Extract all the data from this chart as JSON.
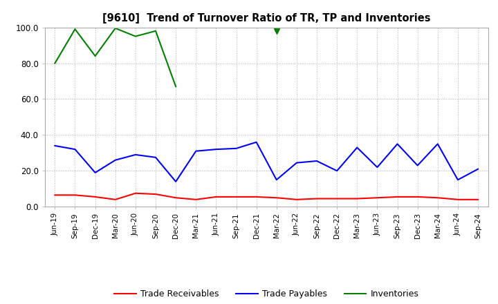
{
  "title": "[9610]  Trend of Turnover Ratio of TR, TP and Inventories",
  "xlabels": [
    "Jun-19",
    "Sep-19",
    "Dec-19",
    "Mar-20",
    "Jun-20",
    "Sep-20",
    "Dec-20",
    "Mar-21",
    "Jun-21",
    "Sep-21",
    "Dec-21",
    "Mar-22",
    "Jun-22",
    "Sep-22",
    "Dec-22",
    "Mar-23",
    "Jun-23",
    "Sep-23",
    "Dec-23",
    "Mar-24",
    "Jun-24",
    "Sep-24"
  ],
  "trade_receivables": [
    6.5,
    6.5,
    5.5,
    4.0,
    7.5,
    7.0,
    5.0,
    4.0,
    5.5,
    5.5,
    5.5,
    5.0,
    4.0,
    4.5,
    4.5,
    4.5,
    5.0,
    5.5,
    5.5,
    5.0,
    4.0,
    4.0
  ],
  "trade_payables": [
    34.0,
    32.0,
    19.0,
    26.0,
    29.0,
    27.5,
    14.0,
    31.0,
    32.0,
    32.5,
    36.0,
    15.0,
    24.5,
    25.5,
    20.0,
    33.0,
    22.0,
    35.0,
    23.0,
    35.0,
    15.0,
    21.0
  ],
  "inventories": [
    80.0,
    99.0,
    84.0,
    99.5,
    95.0,
    98.0,
    67.0,
    null,
    null,
    null,
    null,
    98.0,
    null,
    null,
    null,
    null,
    null,
    null,
    null,
    null,
    null,
    null
  ],
  "ylim": [
    0,
    100
  ],
  "yticks": [
    0.0,
    20.0,
    40.0,
    60.0,
    80.0,
    100.0
  ],
  "legend": [
    "Trade Receivables",
    "Trade Payables",
    "Inventories"
  ],
  "colors": {
    "trade_receivables": "#ff0000",
    "trade_payables": "#0000ff",
    "inventories": "#008000"
  },
  "background_color": "#ffffff",
  "grid_color": "#b0b0b0"
}
